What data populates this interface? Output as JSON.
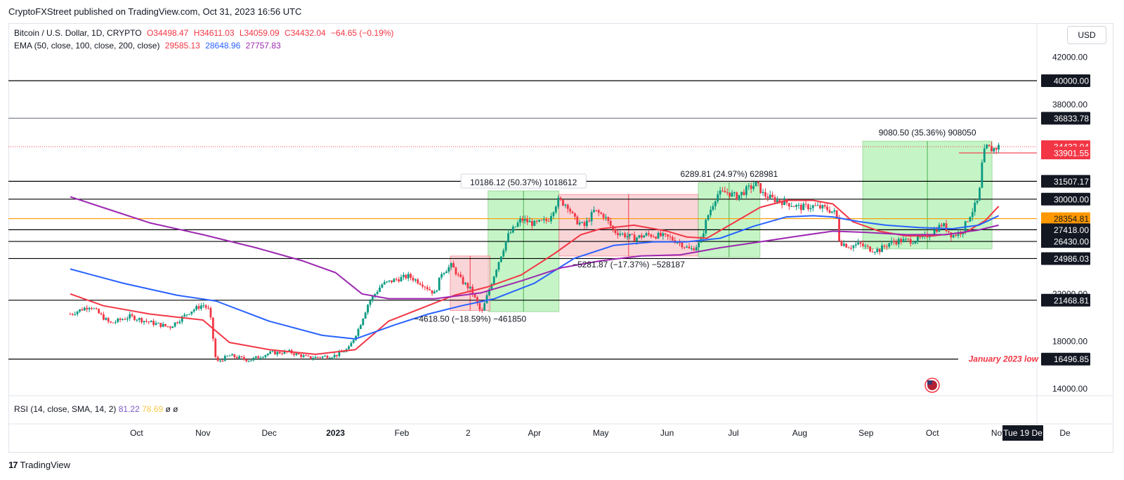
{
  "publisher": "CryptoFXStreet published on TradingView.com, Oct 31, 2023 16:56 UTC",
  "legend": {
    "symbol": "Bitcoin / U.S. Dollar, 1D, CRYPTO",
    "open": "O34498.47",
    "high": "H34611.03",
    "low": "L34059.09",
    "close": "C34432.04",
    "change": "−64.65 (−0.19%)",
    "ema_label": "EMA (50, close, 100, close, 200, close)",
    "ema50": "29585.13",
    "ema100": "28648.96",
    "ema200": "27757.83"
  },
  "currency_button": "USD",
  "rsi_legend": {
    "label": "RSI (14, close, SMA, 14, 2)",
    "rsi": "81.22",
    "sma": "78.69",
    "extra1": "ø",
    "extra2": "ø"
  },
  "date_badge": "Tue 19 De",
  "footer_brand": "TradingView",
  "footer_mark": "17",
  "colors": {
    "up": "#089981",
    "down": "#f23645",
    "ema50": "#f23645",
    "ema100": "#2962ff",
    "ema200": "#9c27b0",
    "level_line": "#000000",
    "orange_level": "#ff9800",
    "green_box": "#b2f2b4",
    "red_box": "#f8c8cc"
  },
  "chart_data": {
    "type": "candlestick",
    "title": "Bitcoin / U.S. Dollar, 1D, CRYPTO",
    "ylim": [
      13400,
      44800
    ],
    "x_domain": [
      0,
      15
    ],
    "y_ticks": [
      14000,
      18000,
      22000,
      38000,
      42000
    ],
    "x_ticks": [
      {
        "label": "Oct",
        "x": 1
      },
      {
        "label": "Nov",
        "x": 2
      },
      {
        "label": "Dec",
        "x": 3
      },
      {
        "label": "2023",
        "x": 4,
        "bold": true
      },
      {
        "label": "Feb",
        "x": 5
      },
      {
        "label": "2",
        "x": 6
      },
      {
        "label": "Apr",
        "x": 7
      },
      {
        "label": "May",
        "x": 8
      },
      {
        "label": "Jun",
        "x": 9
      },
      {
        "label": "Jul",
        "x": 10
      },
      {
        "label": "Aug",
        "x": 11
      },
      {
        "label": "Sep",
        "x": 12
      },
      {
        "label": "Oct",
        "x": 13
      },
      {
        "label": "Nov",
        "x": 14
      },
      {
        "label": "De",
        "x": 15
      }
    ],
    "levels": [
      {
        "value": 40000,
        "label": "40000.00",
        "color": "#000000",
        "badge": "#131722"
      },
      {
        "value": 36833.78,
        "label": "36833.78",
        "color": "#787b86",
        "badge": "#131722"
      },
      {
        "value": 34432.04,
        "label": "34432.04",
        "color": "#f23645",
        "badge": "#f23645",
        "dotted": true
      },
      {
        "value": 33901.55,
        "label": "33901.55",
        "color": "#f23645",
        "badge": "#f23645",
        "short": true
      },
      {
        "value": 31507.17,
        "label": "31507.17",
        "color": "#000000",
        "badge": "#131722"
      },
      {
        "value": 30000,
        "label": "30000.00",
        "color": "#000000",
        "badge": "#131722"
      },
      {
        "value": 28354.81,
        "label": "28354.81",
        "color": "#ff9800",
        "badge": "#ff9800",
        "badge_text": "#131722"
      },
      {
        "value": 27418,
        "label": "27418.00",
        "color": "#000000",
        "badge": "#131722"
      },
      {
        "value": 26430,
        "label": "26430.00",
        "color": "#000000",
        "badge": "#131722"
      },
      {
        "value": 24986.03,
        "label": "24986.03",
        "color": "#000000",
        "badge": "#131722"
      },
      {
        "value": 21468.81,
        "label": "21468.81",
        "color": "#000000",
        "badge": "#131722"
      },
      {
        "value": 16496.85,
        "label": "16496.85",
        "color": "#000000",
        "badge": "#131722"
      }
    ],
    "level_annotation": {
      "text": "January 2023 low",
      "value": 16496.85
    },
    "measure_boxes": [
      {
        "x0": 6.3,
        "x1": 7.37,
        "y0": 20500,
        "y1": 30700,
        "kind": "up",
        "text": "10186.12 (50.37%) 1018612"
      },
      {
        "x0": 5.73,
        "x1": 6.33,
        "y0": 20600,
        "y1": 25200,
        "kind": "down",
        "text": "−4618.50 (−18.59%) −461850"
      },
      {
        "x0": 7.37,
        "x1": 9.47,
        "y0": 25200,
        "y1": 30400,
        "kind": "down",
        "text": "−5281.87 (−17.37%) −528187"
      },
      {
        "x0": 9.47,
        "x1": 10.4,
        "y0": 25100,
        "y1": 31400,
        "kind": "up",
        "text": "6289.81 (24.97%) 628981"
      },
      {
        "x0": 11.95,
        "x1": 13.9,
        "y0": 25800,
        "y1": 34900,
        "kind": "up",
        "text": "9080.50 (35.36%) 908050"
      }
    ],
    "series": [
      {
        "name": "EMA 50",
        "color": "#f23645",
        "points": [
          [
            0,
            22000
          ],
          [
            0.5,
            21000
          ],
          [
            1.2,
            20300
          ],
          [
            2,
            19800
          ],
          [
            2.4,
            17900
          ],
          [
            3,
            17300
          ],
          [
            3.7,
            16900
          ],
          [
            4.3,
            17300
          ],
          [
            4.8,
            19700
          ],
          [
            5.3,
            20800
          ],
          [
            5.8,
            21900
          ],
          [
            6.3,
            22600
          ],
          [
            6.8,
            23600
          ],
          [
            7.3,
            25400
          ],
          [
            7.7,
            27000
          ],
          [
            8,
            27500
          ],
          [
            8.5,
            27800
          ],
          [
            9,
            27300
          ],
          [
            9.3,
            26800
          ],
          [
            9.6,
            26700
          ],
          [
            10,
            28000
          ],
          [
            10.4,
            29300
          ],
          [
            10.8,
            29900
          ],
          [
            11.2,
            29900
          ],
          [
            11.5,
            29600
          ],
          [
            11.8,
            28100
          ],
          [
            12.2,
            27300
          ],
          [
            12.6,
            26900
          ],
          [
            13,
            26900
          ],
          [
            13.5,
            27200
          ],
          [
            13.8,
            28200
          ],
          [
            14,
            29400
          ]
        ]
      },
      {
        "name": "EMA 100",
        "color": "#2962ff",
        "points": [
          [
            0,
            24100
          ],
          [
            0.8,
            22900
          ],
          [
            1.6,
            21900
          ],
          [
            2.2,
            21400
          ],
          [
            3,
            19700
          ],
          [
            3.8,
            18500
          ],
          [
            4.3,
            18200
          ],
          [
            4.9,
            19400
          ],
          [
            5.4,
            20300
          ],
          [
            5.9,
            21000
          ],
          [
            6.4,
            21600
          ],
          [
            7,
            22900
          ],
          [
            7.6,
            25000
          ],
          [
            8.2,
            26100
          ],
          [
            8.8,
            26400
          ],
          [
            9.3,
            26400
          ],
          [
            9.8,
            26700
          ],
          [
            10.3,
            27700
          ],
          [
            10.8,
            28500
          ],
          [
            11.2,
            28600
          ],
          [
            11.5,
            28500
          ],
          [
            11.9,
            28100
          ],
          [
            12.3,
            27800
          ],
          [
            12.8,
            27600
          ],
          [
            13.3,
            27500
          ],
          [
            13.7,
            27800
          ],
          [
            14,
            28600
          ]
        ]
      },
      {
        "name": "EMA 200",
        "color": "#9c27b0",
        "points": [
          [
            0,
            30200
          ],
          [
            0.6,
            29100
          ],
          [
            1.2,
            28000
          ],
          [
            2,
            27000
          ],
          [
            2.8,
            25900
          ],
          [
            3.5,
            24800
          ],
          [
            4,
            23800
          ],
          [
            4.4,
            22000
          ],
          [
            4.8,
            21600
          ],
          [
            5.5,
            21600
          ],
          [
            6.2,
            22100
          ],
          [
            6.8,
            23100
          ],
          [
            7.4,
            24200
          ],
          [
            8,
            24800
          ],
          [
            8.6,
            25200
          ],
          [
            9.2,
            25300
          ],
          [
            9.8,
            25900
          ],
          [
            10.4,
            26400
          ],
          [
            11,
            26900
          ],
          [
            11.5,
            27300
          ],
          [
            12,
            27200
          ],
          [
            12.6,
            27000
          ],
          [
            13.2,
            27000
          ],
          [
            13.7,
            27400
          ],
          [
            14,
            27800
          ]
        ]
      }
    ],
    "candles_note": "daily BTC/USD candles, approx. close path",
    "price_path": [
      [
        0,
        20300
      ],
      [
        0.3,
        21000
      ],
      [
        0.6,
        19500
      ],
      [
        0.9,
        20100
      ],
      [
        1.2,
        19600
      ],
      [
        1.5,
        19200
      ],
      [
        1.8,
        20500
      ],
      [
        2.0,
        21100
      ],
      [
        2.1,
        20600
      ],
      [
        2.2,
        16200
      ],
      [
        2.4,
        16800
      ],
      [
        2.7,
        16400
      ],
      [
        3.0,
        17000
      ],
      [
        3.3,
        17100
      ],
      [
        3.6,
        16600
      ],
      [
        4.0,
        16800
      ],
      [
        4.2,
        17400
      ],
      [
        4.35,
        19100
      ],
      [
        4.5,
        21300
      ],
      [
        4.7,
        22800
      ],
      [
        4.9,
        23200
      ],
      [
        5.1,
        23500
      ],
      [
        5.3,
        22900
      ],
      [
        5.5,
        22000
      ],
      [
        5.6,
        23800
      ],
      [
        5.75,
        24400
      ],
      [
        5.9,
        23100
      ],
      [
        6.05,
        22300
      ],
      [
        6.2,
        20300
      ],
      [
        6.3,
        22100
      ],
      [
        6.45,
        24600
      ],
      [
        6.6,
        26900
      ],
      [
        6.8,
        28300
      ],
      [
        7.0,
        27900
      ],
      [
        7.2,
        28200
      ],
      [
        7.35,
        29900
      ],
      [
        7.5,
        29500
      ],
      [
        7.6,
        28300
      ],
      [
        7.75,
        27700
      ],
      [
        7.9,
        29000
      ],
      [
        8.05,
        28600
      ],
      [
        8.2,
        27300
      ],
      [
        8.35,
        27000
      ],
      [
        8.5,
        26700
      ],
      [
        8.7,
        27000
      ],
      [
        8.9,
        26900
      ],
      [
        9.05,
        26700
      ],
      [
        9.2,
        26300
      ],
      [
        9.35,
        25700
      ],
      [
        9.5,
        26300
      ],
      [
        9.6,
        28400
      ],
      [
        9.75,
        30400
      ],
      [
        9.9,
        30600
      ],
      [
        10.05,
        30200
      ],
      [
        10.2,
        30800
      ],
      [
        10.35,
        31300
      ],
      [
        10.45,
        30400
      ],
      [
        10.6,
        30000
      ],
      [
        10.8,
        29700
      ],
      [
        11.0,
        29300
      ],
      [
        11.2,
        29400
      ],
      [
        11.4,
        29200
      ],
      [
        11.55,
        28800
      ],
      [
        11.6,
        26400
      ],
      [
        11.75,
        26000
      ],
      [
        11.9,
        26200
      ],
      [
        12.05,
        25800
      ],
      [
        12.2,
        25700
      ],
      [
        12.35,
        26300
      ],
      [
        12.5,
        26500
      ],
      [
        12.7,
        26500
      ],
      [
        12.85,
        26700
      ],
      [
        13.0,
        27200
      ],
      [
        13.15,
        27900
      ],
      [
        13.3,
        26900
      ],
      [
        13.45,
        27300
      ],
      [
        13.55,
        28500
      ],
      [
        13.7,
        30000
      ],
      [
        13.75,
        33000
      ],
      [
        13.8,
        34400
      ],
      [
        13.9,
        34200
      ],
      [
        14.0,
        34432
      ]
    ]
  }
}
